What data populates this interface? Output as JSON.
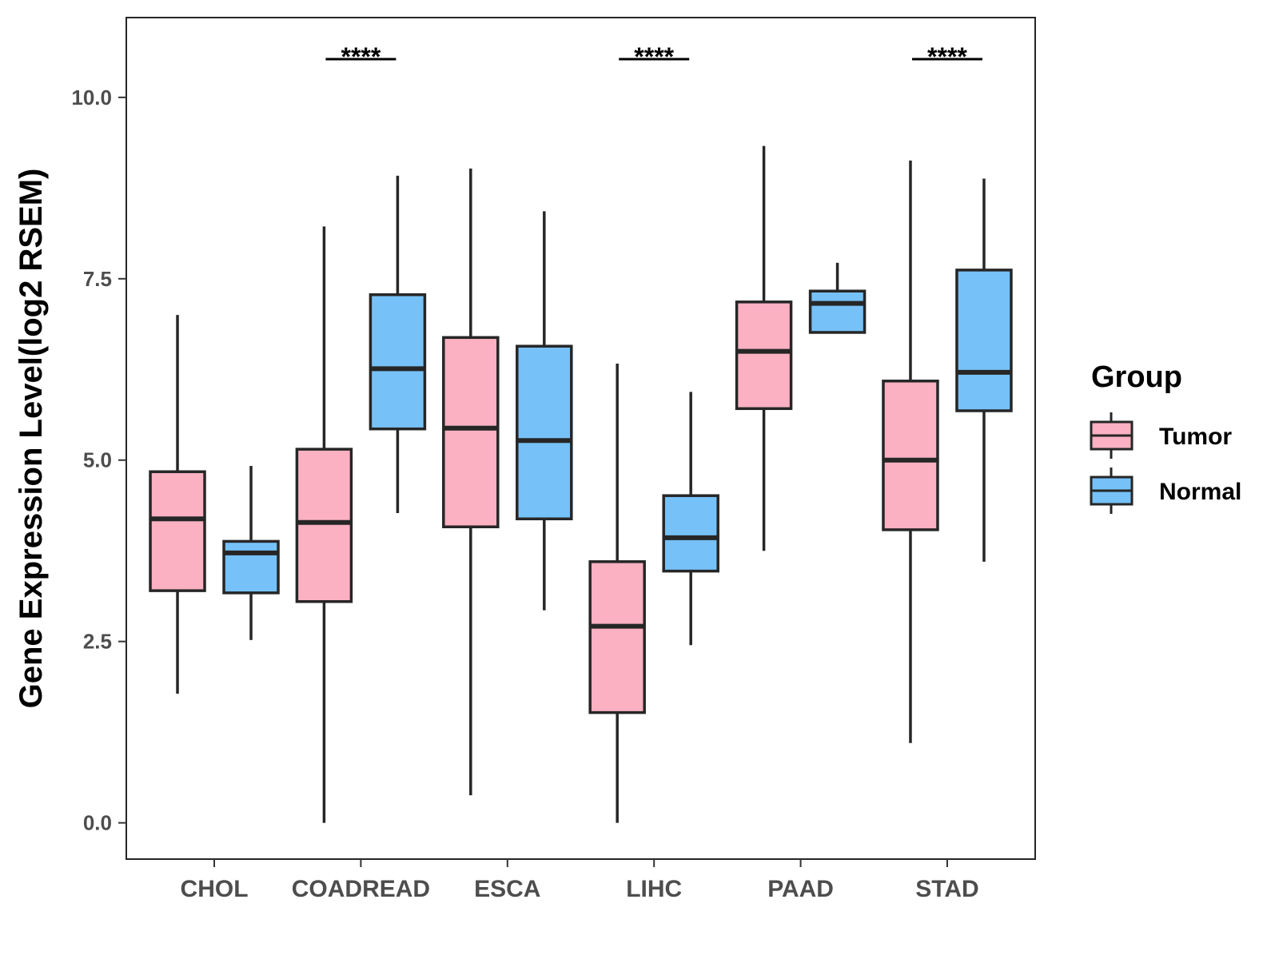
{
  "chart_data": {
    "type": "boxplot",
    "title": "",
    "xlabel": "",
    "ylabel": "Gene Expression Level(log2 RSEM)",
    "ylim": [
      -0.5,
      11.1
    ],
    "yticks": [
      0.0,
      2.5,
      5.0,
      7.5,
      10.0
    ],
    "ytick_labels": [
      "0.0",
      "2.5",
      "5.0",
      "7.5",
      "10.0"
    ],
    "categories": [
      "CHOL",
      "COADREAD",
      "ESCA",
      "LIHC",
      "PAAD",
      "STAD"
    ],
    "legend": {
      "title": "Group",
      "position": "right",
      "entries": [
        "Tumor",
        "Normal"
      ]
    },
    "series": [
      {
        "name": "Tumor",
        "color": "#fbb1c2",
        "boxes": [
          {
            "min": 1.78,
            "q1": 3.2,
            "median": 4.19,
            "q3": 4.84,
            "max": 7.0
          },
          {
            "min": 0.0,
            "q1": 3.05,
            "median": 4.14,
            "q3": 5.15,
            "max": 8.22
          },
          {
            "min": 0.38,
            "q1": 4.08,
            "median": 5.44,
            "q3": 6.69,
            "max": 9.02
          },
          {
            "min": 0.0,
            "q1": 1.52,
            "median": 2.71,
            "q3": 3.6,
            "max": 6.33
          },
          {
            "min": 3.75,
            "q1": 5.71,
            "median": 6.5,
            "q3": 7.18,
            "max": 9.33
          },
          {
            "min": 1.1,
            "q1": 4.04,
            "median": 5.0,
            "q3": 6.09,
            "max": 9.13
          }
        ]
      },
      {
        "name": "Normal",
        "color": "#76c1f8",
        "boxes": [
          {
            "min": 2.52,
            "q1": 3.17,
            "median": 3.72,
            "q3": 3.88,
            "max": 4.92
          },
          {
            "min": 4.27,
            "q1": 5.43,
            "median": 6.26,
            "q3": 7.28,
            "max": 8.92
          },
          {
            "min": 2.93,
            "q1": 4.19,
            "median": 5.27,
            "q3": 6.57,
            "max": 8.43
          },
          {
            "min": 2.45,
            "q1": 3.47,
            "median": 3.93,
            "q3": 4.51,
            "max": 5.94
          },
          {
            "min": 6.76,
            "q1": 6.76,
            "median": 7.16,
            "q3": 7.33,
            "max": 7.72
          },
          {
            "min": 3.6,
            "q1": 5.68,
            "median": 6.21,
            "q3": 7.62,
            "max": 8.88
          }
        ]
      }
    ],
    "annotations": [
      {
        "category": "COADREAD",
        "text": "****"
      },
      {
        "category": "LIHC",
        "text": "****"
      },
      {
        "category": "STAD",
        "text": "****"
      }
    ],
    "grid": false,
    "panel_border": true
  }
}
